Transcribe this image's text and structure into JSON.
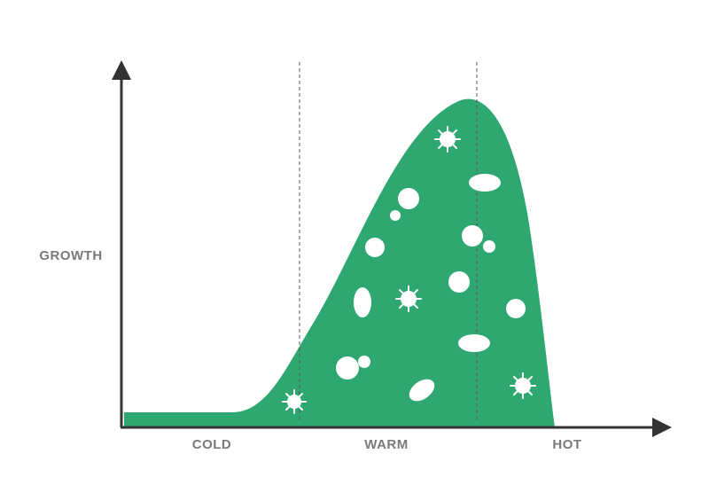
{
  "axis": {
    "y_label": "GROWTH",
    "x_labels": [
      "COLD",
      "WARM",
      "HOT"
    ]
  }
}
